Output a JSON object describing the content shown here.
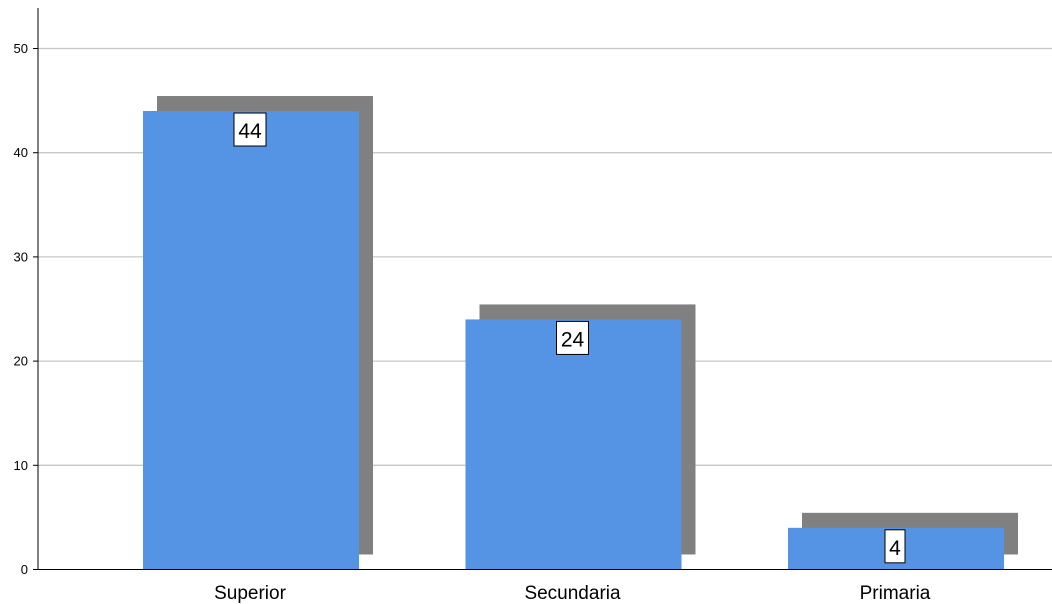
{
  "chart_data": {
    "type": "bar",
    "categories": [
      "Superior",
      "Secundaria",
      "Primaria"
    ],
    "values": [
      44,
      24,
      4
    ],
    "data_labels": [
      "44",
      "24",
      "4"
    ],
    "title": "",
    "xlabel": "",
    "ylabel": "",
    "ylim": [
      0,
      53
    ],
    "yticks": [
      0,
      10,
      20,
      30,
      40,
      50
    ],
    "ytick_labels": [
      "0",
      "10",
      "20",
      "30",
      "40",
      "50"
    ],
    "grid": "horizontal",
    "colors": {
      "bar": "#5593e4",
      "shadow": "#808080",
      "grid": "#c8c8c8",
      "axis": "#000000"
    }
  }
}
